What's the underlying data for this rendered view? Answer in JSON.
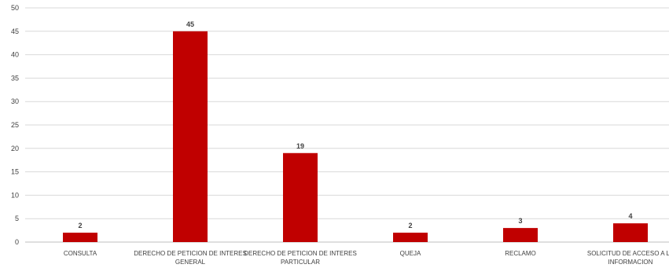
{
  "chart_data": {
    "type": "bar",
    "categories": [
      [
        "CONSULTA"
      ],
      [
        "DERECHO DE PETICION DE INTERES",
        "GENERAL"
      ],
      [
        "DERECHO DE PETICION DE INTERES",
        "PARTICULAR"
      ],
      [
        "QUEJA"
      ],
      [
        "RECLAMO"
      ],
      [
        "SOLICITUD DE ACCESO A LA",
        "INFORMACION"
      ]
    ],
    "values": [
      2,
      45,
      19,
      2,
      3,
      4
    ],
    "ylim": [
      0,
      50
    ],
    "yticks": [
      0,
      5,
      10,
      15,
      20,
      25,
      30,
      35,
      40,
      45,
      50
    ],
    "grid": true,
    "legend": "none",
    "colors": {
      "bar": "#c00000"
    }
  }
}
